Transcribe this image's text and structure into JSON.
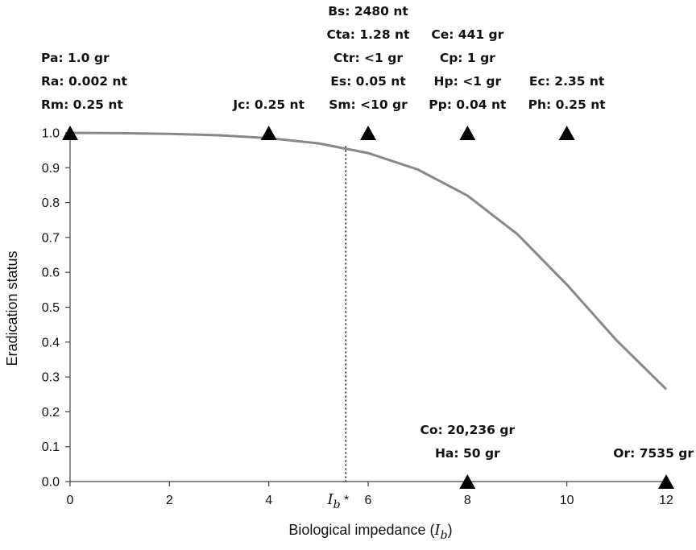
{
  "chart_data": {
    "type": "line",
    "xlabel": "Biological impedance (",
    "xlabel_symbol": "I",
    "xlabel_sub": "b",
    "xlabel_close": ")",
    "ylabel": "Eradication status",
    "xlim": [
      0,
      12
    ],
    "ylim": [
      0,
      1.0
    ],
    "x_ticks": [
      "0",
      "2",
      "4",
      "6",
      "8",
      "10",
      "12"
    ],
    "y_ticks": [
      "0.0",
      "0.1",
      "0.2",
      "0.3",
      "0.4",
      "0.5",
      "0.6",
      "0.7",
      "0.8",
      "0.9",
      "1.0"
    ],
    "x_tick_values": [
      0,
      2,
      4,
      6,
      8,
      10,
      12
    ],
    "y_tick_values": [
      0,
      0.1,
      0.2,
      0.3,
      0.4,
      0.5,
      0.6,
      0.7,
      0.8,
      0.9,
      1.0
    ],
    "grid": false,
    "line_color": "#888888",
    "series": [
      {
        "x": [
          0,
          1,
          2,
          3,
          4,
          5,
          6,
          7,
          8,
          9,
          10,
          11,
          12
        ],
        "values": [
          1.0,
          0.999,
          0.997,
          0.993,
          0.985,
          0.97,
          0.942,
          0.895,
          0.82,
          0.71,
          0.565,
          0.405,
          0.265
        ]
      }
    ],
    "reference_line": {
      "x": 5.55,
      "style": "dotted",
      "label_symbol": "I",
      "label_sub": "b",
      "label_suffix": " *"
    },
    "markers": [
      {
        "x": 0,
        "y": 1.0
      },
      {
        "x": 4,
        "y": 1.0
      },
      {
        "x": 6,
        "y": 1.0
      },
      {
        "x": 8,
        "y": 1.0
      },
      {
        "x": 10,
        "y": 1.0
      },
      {
        "x": 8,
        "y": 0.0
      },
      {
        "x": 12,
        "y": 0.0
      }
    ],
    "annotations": [
      {
        "x": 0,
        "y": 1.0,
        "anchor": "start",
        "lines": [
          "Pa: 1.0 gr",
          "Ra: 0.002 nt",
          "Rm: 0.25 nt"
        ]
      },
      {
        "x": 4,
        "y": 1.0,
        "anchor": "middle",
        "lines": [
          "Jc: 0.25 nt"
        ]
      },
      {
        "x": 6,
        "y": 1.0,
        "anchor": "middle",
        "lines": [
          "Bs: 2480 nt",
          "Cta: 1.28 nt",
          "Ctr: <1 gr",
          "Es: 0.05 nt",
          "Sm: <10 gr"
        ]
      },
      {
        "x": 8,
        "y": 1.0,
        "anchor": "middle",
        "lines": [
          "Ce: 441 gr",
          "Cp: 1 gr",
          "Hp: <1 gr",
          "Pp: 0.04 nt"
        ]
      },
      {
        "x": 10,
        "y": 1.0,
        "anchor": "middle",
        "lines": [
          "Ec: 2.35 nt",
          "Ph: 0.25 nt"
        ]
      },
      {
        "x": 8,
        "y": 0.0,
        "anchor": "middle",
        "lines": [
          "Co: 20,236 gr",
          "Ha: 50 gr"
        ]
      },
      {
        "x": 12,
        "y": 0.0,
        "anchor": "end",
        "lines": [
          "Or: 7535 gr"
        ]
      }
    ]
  }
}
